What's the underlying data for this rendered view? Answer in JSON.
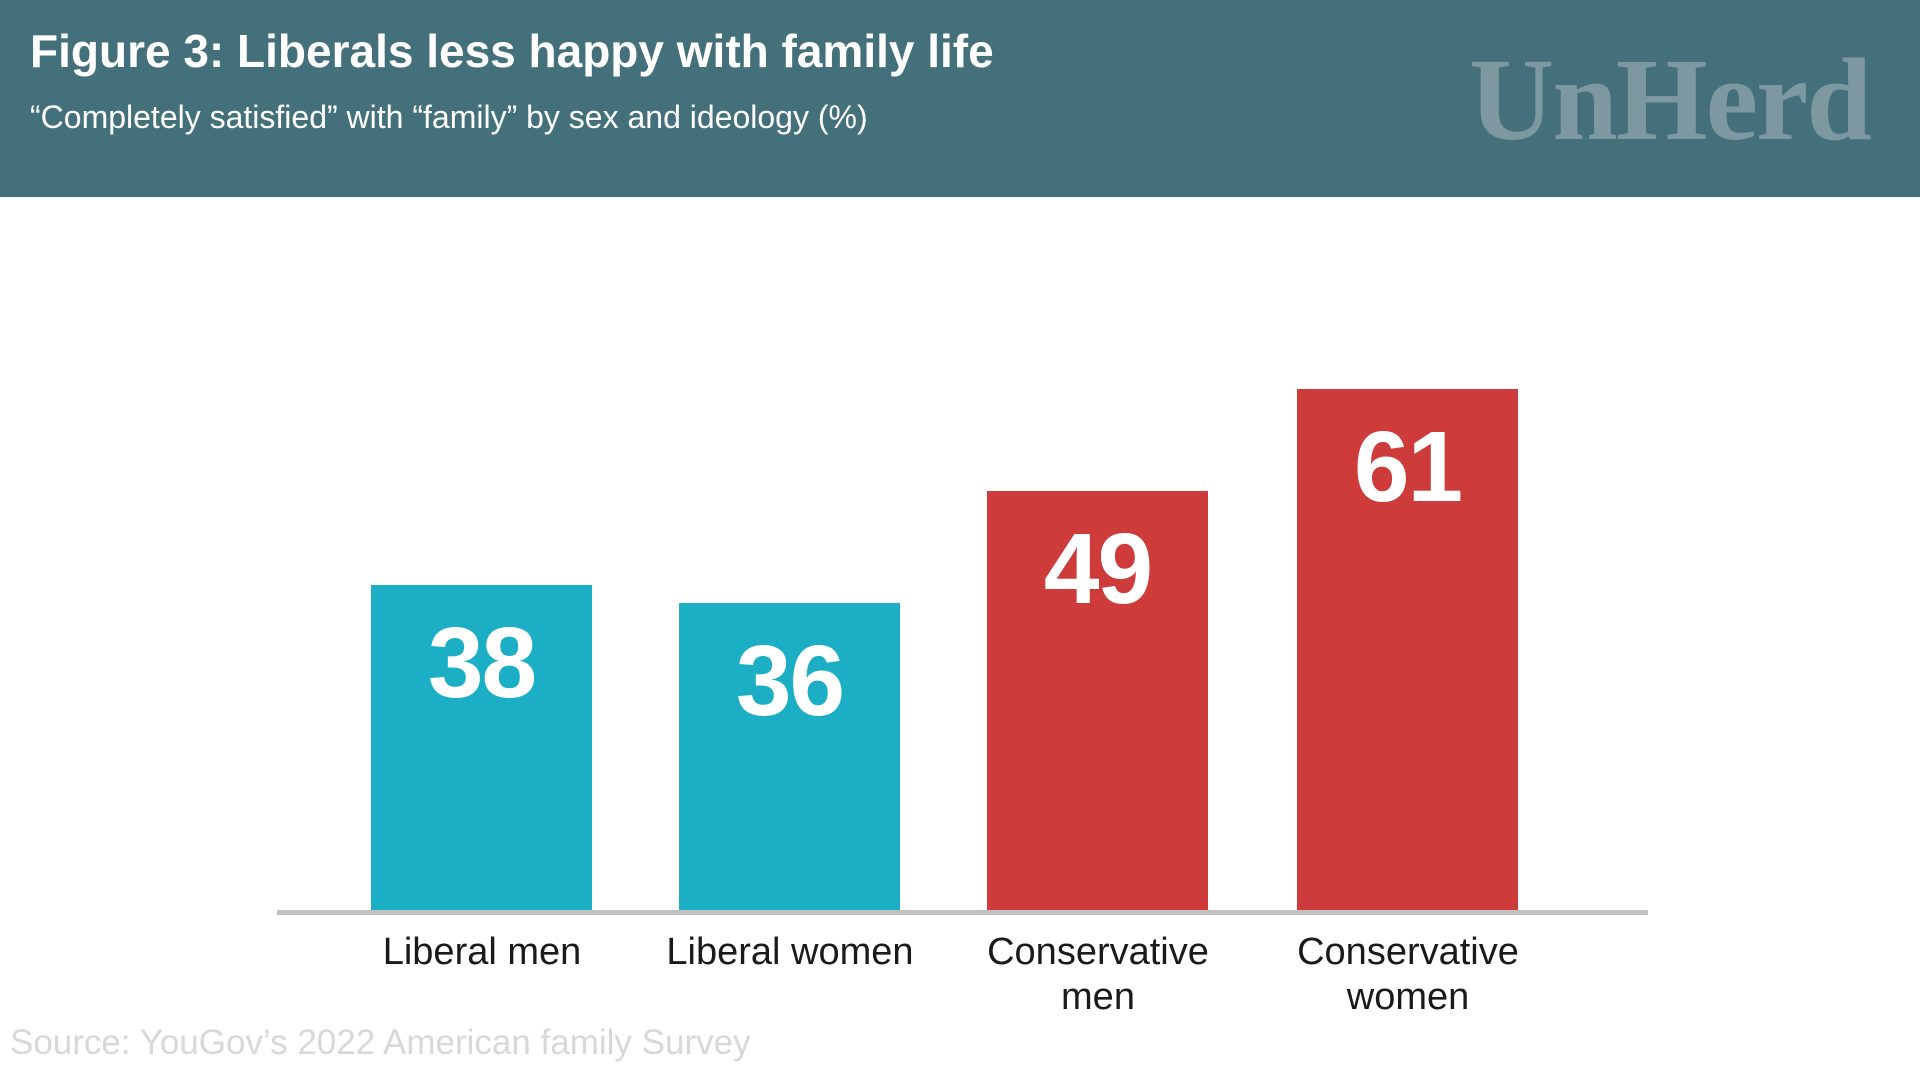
{
  "header": {
    "title": "Figure 3: Liberals less happy with family life",
    "subtitle": "“Completely satisfied” with “family” by sex and ideology (%)",
    "logo": "UnHerd"
  },
  "chart_data": {
    "type": "bar",
    "title": "Figure 3: Liberals less happy with family life",
    "subtitle": "“Completely satisfied” with “family” by sex and ideology (%)",
    "categories": [
      "Liberal men",
      "Liberal women",
      "Conservative\nmen",
      "Conservative\nwomen"
    ],
    "values": [
      38,
      36,
      49,
      61
    ],
    "groups": [
      "liberal",
      "liberal",
      "conservative",
      "conservative"
    ],
    "colors": {
      "liberal": "#1caec5",
      "conservative": "#ce3b3b"
    },
    "value_label_position": "inside-top",
    "xlabel": "",
    "ylabel": "",
    "ylim": [
      0,
      61
    ],
    "grid": false,
    "legend": false,
    "y_axis_visible": false,
    "x_axis_line": true
  },
  "source": "Source: YouGov’s 2022 American family Survey",
  "colors": {
    "header_bg": "#44707b",
    "logo": "#7e98a1",
    "axis_line": "#c1c1c1",
    "category_label": "#1a1a1a",
    "source_text": "#d8d8d8",
    "value_text": "#ffffff"
  }
}
